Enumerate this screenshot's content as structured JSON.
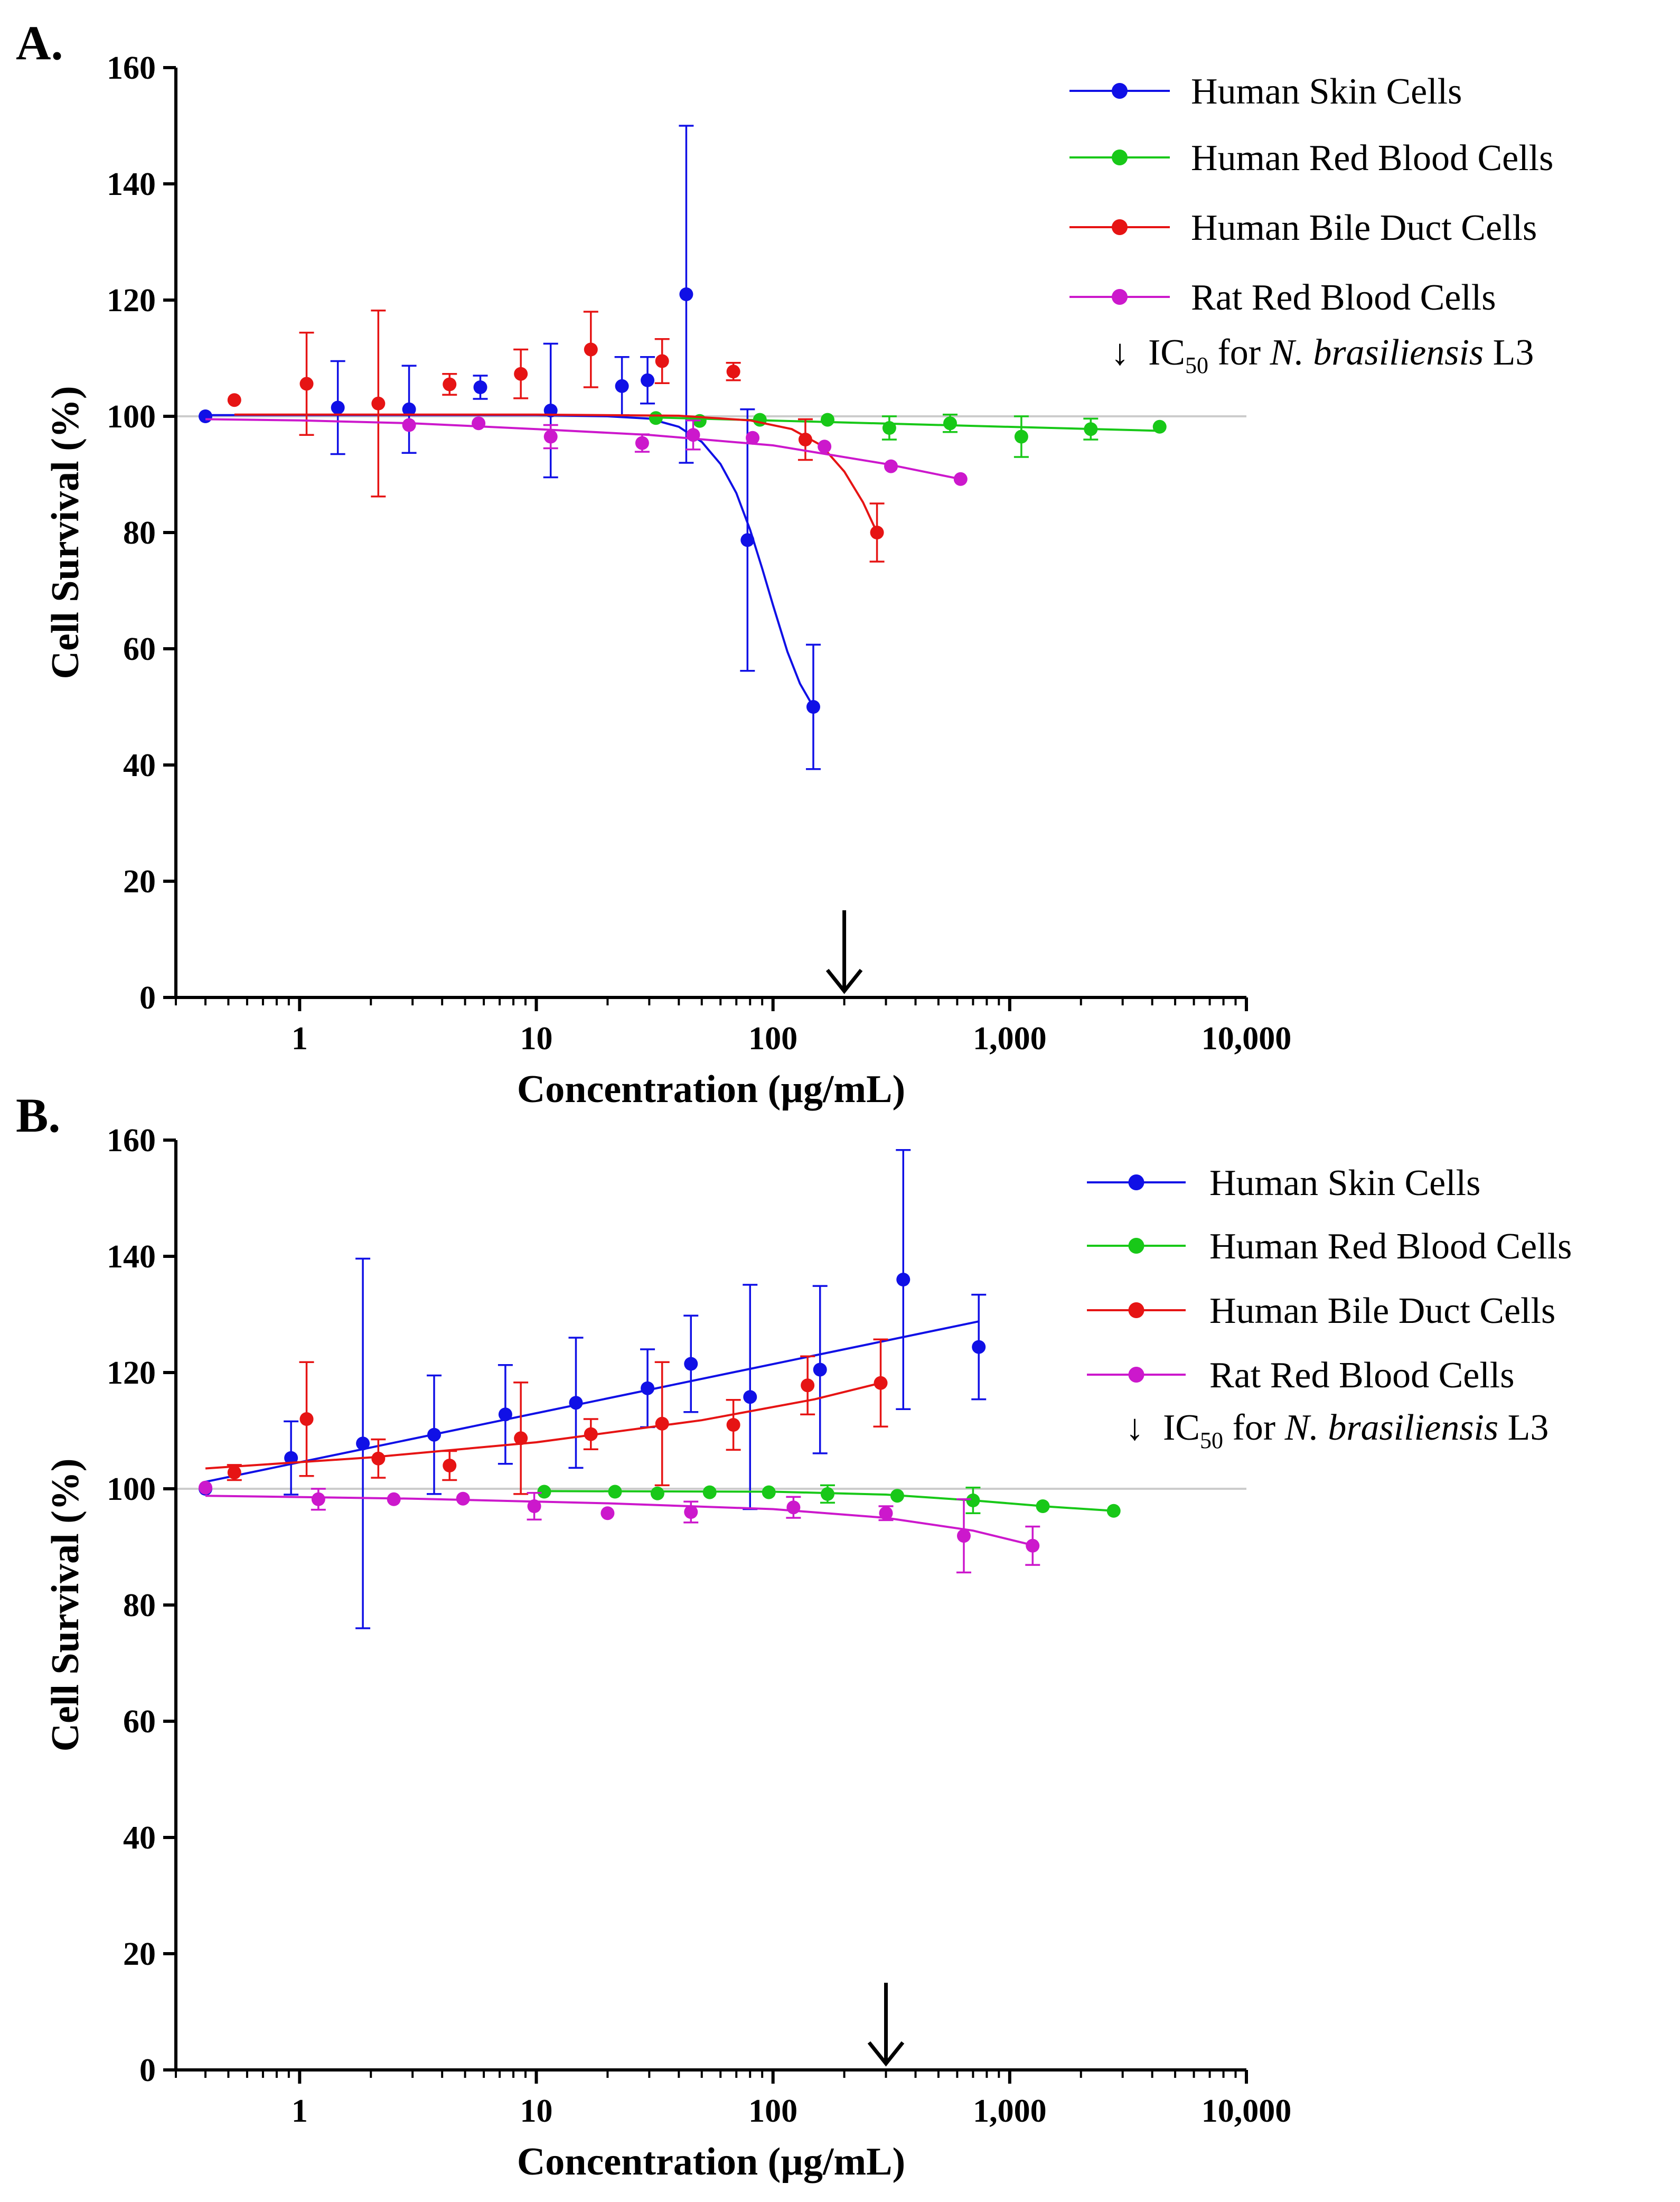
{
  "figure": {
    "colors": {
      "Human Skin Cells": "#1010e6",
      "Human Red Blood Cells": "#18c818",
      "Human Bile Duct Cells": "#e61414",
      "Rat Red Blood Cells": "#cc18cc"
    },
    "ic50_legend": {
      "arrow_glyph": "↓",
      "prefix": "IC",
      "subscript": "50",
      "middle": " for ",
      "italic": "N. brasiliensis",
      "suffix": " L3"
    }
  },
  "chart_data": [
    {
      "panel_label": "A.",
      "type": "scatter",
      "xscale": "log",
      "xlim": [
        0.3,
        10000
      ],
      "ylim": [
        0,
        160
      ],
      "xticks": [
        1,
        10,
        100,
        1000,
        10000
      ],
      "xtick_labels": [
        "1",
        "10",
        "100",
        "1,000",
        "10,000"
      ],
      "yticks": [
        0,
        20,
        40,
        60,
        80,
        100,
        120,
        140,
        160
      ],
      "ytick_labels": [
        "0",
        "20",
        "40",
        "60",
        "80",
        "100",
        "120",
        "140",
        "160"
      ],
      "xlabel": "Concentration (µg/mL)",
      "ylabel": "Cell Survival (%)",
      "reference_line_y": 100,
      "ic50_arrow_x": 200,
      "legend_position": "top-right",
      "series": [
        {
          "name": "Human Skin Cells",
          "points": [
            {
              "x": 0.4,
              "y": 100,
              "err": 0
            },
            {
              "x": 1.45,
              "y": 101.5,
              "err": 8
            },
            {
              "x": 2.9,
              "y": 101.2,
              "err": 7.5
            },
            {
              "x": 5.8,
              "y": 105,
              "err": 2
            },
            {
              "x": 11.5,
              "y": 101,
              "err": 11.5
            },
            {
              "x": 23,
              "y": 105.2,
              "err": 5
            },
            {
              "x": 29.5,
              "y": 106.2,
              "err": 4
            },
            {
              "x": 43,
              "y": 121,
              "err": 29
            },
            {
              "x": 78,
              "y": 78.7,
              "err": 22.5
            },
            {
              "x": 148,
              "y": 50,
              "err": 10.7
            }
          ],
          "fit": [
            {
              "x": 0.4,
              "y": 100.2
            },
            {
              "x": 10,
              "y": 100.2
            },
            {
              "x": 20,
              "y": 100
            },
            {
              "x": 30,
              "y": 99.6
            },
            {
              "x": 40,
              "y": 98.2
            },
            {
              "x": 50,
              "y": 95.6
            },
            {
              "x": 60,
              "y": 91.8
            },
            {
              "x": 70,
              "y": 86.8
            },
            {
              "x": 80,
              "y": 80.5
            },
            {
              "x": 90,
              "y": 73.8
            },
            {
              "x": 100,
              "y": 67.5
            },
            {
              "x": 115,
              "y": 59.5
            },
            {
              "x": 130,
              "y": 54
            },
            {
              "x": 148,
              "y": 50
            }
          ]
        },
        {
          "name": "Human Red Blood Cells",
          "points": [
            {
              "x": 32,
              "y": 99.7,
              "err": 0
            },
            {
              "x": 49,
              "y": 99.2,
              "err": 0
            },
            {
              "x": 88,
              "y": 99.4,
              "err": 0
            },
            {
              "x": 170,
              "y": 99.4,
              "err": 0
            },
            {
              "x": 310,
              "y": 98,
              "err": 2
            },
            {
              "x": 560,
              "y": 98.8,
              "err": 1.5
            },
            {
              "x": 1120,
              "y": 96.5,
              "err": 3.5
            },
            {
              "x": 2200,
              "y": 97.8,
              "err": 1.8
            },
            {
              "x": 4300,
              "y": 98.2,
              "err": 0
            }
          ],
          "fit": [
            {
              "x": 32,
              "y": 99.8
            },
            {
              "x": 4300,
              "y": 97.5
            }
          ]
        },
        {
          "name": "Human Bile Duct Cells",
          "points": [
            {
              "x": 0.53,
              "y": 102.8,
              "err": 0
            },
            {
              "x": 1.07,
              "y": 105.6,
              "err": 8.8
            },
            {
              "x": 2.15,
              "y": 102.2,
              "err": 16
            },
            {
              "x": 4.3,
              "y": 105.5,
              "err": 1.8
            },
            {
              "x": 8.6,
              "y": 107.3,
              "err": 4.2
            },
            {
              "x": 17,
              "y": 111.5,
              "err": 6.5
            },
            {
              "x": 34,
              "y": 109.5,
              "err": 3.8
            },
            {
              "x": 68,
              "y": 107.7,
              "err": 1.5
            },
            {
              "x": 137,
              "y": 96,
              "err": 3.5
            },
            {
              "x": 275,
              "y": 80,
              "err": 5
            }
          ],
          "fit": [
            {
              "x": 0.53,
              "y": 100.3
            },
            {
              "x": 10,
              "y": 100.3
            },
            {
              "x": 40,
              "y": 100.1
            },
            {
              "x": 80,
              "y": 99.3
            },
            {
              "x": 120,
              "y": 97.8
            },
            {
              "x": 160,
              "y": 95
            },
            {
              "x": 200,
              "y": 90.5
            },
            {
              "x": 240,
              "y": 85.2
            },
            {
              "x": 275,
              "y": 80
            }
          ]
        },
        {
          "name": "Rat Red Blood Cells",
          "points": [
            {
              "x": 2.9,
              "y": 98.5,
              "err": 0
            },
            {
              "x": 5.7,
              "y": 98.8,
              "err": 0
            },
            {
              "x": 11.5,
              "y": 96.5,
              "err": 2
            },
            {
              "x": 28,
              "y": 95.4,
              "err": 1.5
            },
            {
              "x": 46,
              "y": 96.8,
              "err": 2.5
            },
            {
              "x": 82,
              "y": 96.3,
              "err": 0
            },
            {
              "x": 165,
              "y": 94.8,
              "err": 0
            },
            {
              "x": 315,
              "y": 91.4,
              "err": 0
            },
            {
              "x": 620,
              "y": 89.2,
              "err": 0
            }
          ],
          "fit": [
            {
              "x": 0.4,
              "y": 99.5
            },
            {
              "x": 1,
              "y": 99.3
            },
            {
              "x": 3,
              "y": 98.8
            },
            {
              "x": 10,
              "y": 97.8
            },
            {
              "x": 30,
              "y": 96.8
            },
            {
              "x": 100,
              "y": 95
            },
            {
              "x": 300,
              "y": 91.8
            },
            {
              "x": 620,
              "y": 89.2
            }
          ]
        }
      ]
    },
    {
      "panel_label": "B.",
      "type": "scatter",
      "xscale": "log",
      "xlim": [
        0.3,
        10000
      ],
      "ylim": [
        0,
        160
      ],
      "xticks": [
        1,
        10,
        100,
        1000,
        10000
      ],
      "xtick_labels": [
        "1",
        "10",
        "100",
        "1,000",
        "10,000"
      ],
      "yticks": [
        0,
        20,
        40,
        60,
        80,
        100,
        120,
        140,
        160
      ],
      "ytick_labels": [
        "0",
        "20",
        "40",
        "60",
        "80",
        "100",
        "120",
        "140",
        "160"
      ],
      "xlabel": "Concentration (µg/mL)",
      "ylabel": "Cell Survival (%)",
      "reference_line_y": 100,
      "ic50_arrow_x": 300,
      "legend_position": "top-right",
      "series": [
        {
          "name": "Human Skin Cells",
          "points": [
            {
              "x": 0.4,
              "y": 100,
              "err": 0
            },
            {
              "x": 0.92,
              "y": 105.3,
              "err": 6.3
            },
            {
              "x": 1.85,
              "y": 107.8,
              "err": 31.8
            },
            {
              "x": 3.7,
              "y": 109.3,
              "err": 10.2
            },
            {
              "x": 7.4,
              "y": 112.8,
              "err": 8.5
            },
            {
              "x": 14.7,
              "y": 114.8,
              "err": 11.2
            },
            {
              "x": 29.5,
              "y": 117.3,
              "err": 6.7
            },
            {
              "x": 45,
              "y": 121.5,
              "err": 8.3
            },
            {
              "x": 80,
              "y": 115.8,
              "err": 19.3
            },
            {
              "x": 158,
              "y": 120.5,
              "err": 14.4
            },
            {
              "x": 355,
              "y": 136,
              "err": 22.3
            },
            {
              "x": 740,
              "y": 124.4,
              "err": 9
            }
          ],
          "fit": [
            {
              "x": 0.4,
              "y": 101.2
            },
            {
              "x": 740,
              "y": 128.8
            }
          ]
        },
        {
          "name": "Human Red Blood Cells",
          "points": [
            {
              "x": 10.8,
              "y": 99.5,
              "err": 0
            },
            {
              "x": 21.5,
              "y": 99.5,
              "err": 0
            },
            {
              "x": 32.5,
              "y": 99.2,
              "err": 0
            },
            {
              "x": 54,
              "y": 99.4,
              "err": 0
            },
            {
              "x": 96,
              "y": 99.4,
              "err": 0
            },
            {
              "x": 170,
              "y": 99.1,
              "err": 1.5
            },
            {
              "x": 335,
              "y": 98.8,
              "err": 0
            },
            {
              "x": 700,
              "y": 98,
              "err": 2.2
            },
            {
              "x": 1380,
              "y": 97,
              "err": 0
            },
            {
              "x": 2750,
              "y": 96.2,
              "err": 0
            }
          ],
          "fit": [
            {
              "x": 10.8,
              "y": 99.6
            },
            {
              "x": 100,
              "y": 99.5
            },
            {
              "x": 300,
              "y": 99
            },
            {
              "x": 700,
              "y": 98
            },
            {
              "x": 1500,
              "y": 96.9
            },
            {
              "x": 2750,
              "y": 96.2
            }
          ]
        },
        {
          "name": "Human Bile Duct Cells",
          "points": [
            {
              "x": 0.53,
              "y": 102.8,
              "err": 1.3
            },
            {
              "x": 1.07,
              "y": 112,
              "err": 9.8
            },
            {
              "x": 2.15,
              "y": 105.2,
              "err": 3.3
            },
            {
              "x": 4.3,
              "y": 104,
              "err": 2.5
            },
            {
              "x": 8.6,
              "y": 108.7,
              "err": 9.6
            },
            {
              "x": 17,
              "y": 109.4,
              "err": 2.6
            },
            {
              "x": 34,
              "y": 111.2,
              "err": 10.6
            },
            {
              "x": 68,
              "y": 111,
              "err": 4.3
            },
            {
              "x": 140,
              "y": 117.8,
              "err": 5
            },
            {
              "x": 285,
              "y": 118.2,
              "err": 7.5
            }
          ],
          "fit": [
            {
              "x": 0.4,
              "y": 103.5
            },
            {
              "x": 2,
              "y": 105.4
            },
            {
              "x": 10,
              "y": 108
            },
            {
              "x": 50,
              "y": 111.8
            },
            {
              "x": 150,
              "y": 115.4
            },
            {
              "x": 285,
              "y": 118.2
            }
          ]
        },
        {
          "name": "Rat Red Blood Cells",
          "points": [
            {
              "x": 0.4,
              "y": 100.2,
              "err": 0
            },
            {
              "x": 1.2,
              "y": 98.2,
              "err": 1.8
            },
            {
              "x": 2.5,
              "y": 98.2,
              "err": 0
            },
            {
              "x": 4.9,
              "y": 98.3,
              "err": 0
            },
            {
              "x": 9.8,
              "y": 97,
              "err": 2.3
            },
            {
              "x": 20,
              "y": 95.8,
              "err": 0
            },
            {
              "x": 45,
              "y": 96,
              "err": 1.8
            },
            {
              "x": 122,
              "y": 96.8,
              "err": 1.8
            },
            {
              "x": 300,
              "y": 95.8,
              "err": 1.2
            },
            {
              "x": 640,
              "y": 91.9,
              "err": 6.3
            },
            {
              "x": 1250,
              "y": 90.2,
              "err": 3.3
            }
          ],
          "fit": [
            {
              "x": 0.4,
              "y": 98.8
            },
            {
              "x": 3,
              "y": 98.3
            },
            {
              "x": 20,
              "y": 97.5
            },
            {
              "x": 100,
              "y": 96.5
            },
            {
              "x": 300,
              "y": 95
            },
            {
              "x": 700,
              "y": 92.8
            },
            {
              "x": 1250,
              "y": 90.3
            }
          ]
        }
      ]
    }
  ]
}
